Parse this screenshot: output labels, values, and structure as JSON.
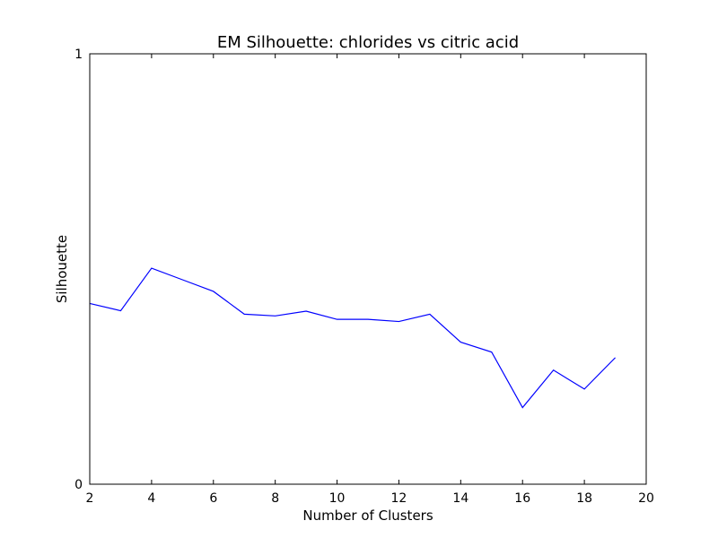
{
  "chart_data": {
    "type": "line",
    "title": "EM Silhouette: chlorides vs citric acid",
    "xlabel": "Number of Clusters",
    "ylabel": "Silhouette",
    "xlim": [
      2,
      20
    ],
    "ylim": [
      0,
      1
    ],
    "xticks": [
      "2",
      "4",
      "6",
      "8",
      "10",
      "12",
      "14",
      "16",
      "18",
      "20"
    ],
    "yticks": [
      "0",
      "1"
    ],
    "grid": false,
    "series": [
      {
        "color": "#0000ff",
        "x": [
          2,
          3,
          4,
          5,
          6,
          7,
          8,
          9,
          10,
          11,
          12,
          13,
          14,
          15,
          16,
          17,
          18,
          19
        ],
        "y": [
          0.42,
          0.403,
          0.502,
          0.475,
          0.448,
          0.395,
          0.391,
          0.402,
          0.383,
          0.383,
          0.378,
          0.395,
          0.33,
          0.307,
          0.178,
          0.265,
          0.221,
          0.294
        ]
      }
    ]
  }
}
